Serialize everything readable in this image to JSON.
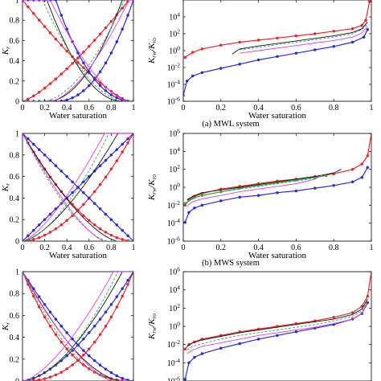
{
  "chart_data": [
    {
      "type": "line",
      "caption": "",
      "xlabel": "Water saturation",
      "ylabel": "K_r",
      "xlim": [
        0,
        1
      ],
      "ylim": [
        0,
        1
      ],
      "yscale": "linear",
      "xticks": [
        "0",
        "0.2",
        "0.4",
        "0.6",
        "0.8",
        "1"
      ],
      "yticks": [
        "0",
        "0.2",
        "0.4",
        "0.6",
        "0.8",
        "1"
      ],
      "series": [
        {
          "color": "#e8262d",
          "marker": true,
          "style": "solid",
          "kind": "krw",
          "a": 0.0,
          "b": 0.96,
          "n": 1.3
        },
        {
          "color": "#e8262d",
          "marker": true,
          "style": "solid",
          "kind": "kro",
          "a": 0.0,
          "b": 0.96,
          "n": 1.3
        },
        {
          "color": "#2b2bd0",
          "marker": true,
          "style": "solid",
          "kind": "krw",
          "a": 0.3,
          "b": 1.0,
          "n": 2.2
        },
        {
          "color": "#2b2bd0",
          "marker": true,
          "style": "solid",
          "kind": "kro",
          "a": 0.3,
          "b": 1.0,
          "n": 2.2
        },
        {
          "color": "#111111",
          "marker": false,
          "style": "solid",
          "kind": "krw",
          "a": 0.22,
          "b": 0.9,
          "n": 2.0
        },
        {
          "color": "#111111",
          "marker": false,
          "style": "solid",
          "kind": "kro",
          "a": 0.22,
          "b": 0.9,
          "n": 2.0
        },
        {
          "color": "#2ba84a",
          "marker": false,
          "style": "dashed",
          "kind": "krw",
          "a": 0.18,
          "b": 0.92,
          "n": 1.8
        },
        {
          "color": "#2ba84a",
          "marker": false,
          "style": "dashed",
          "kind": "kro",
          "a": 0.18,
          "b": 0.92,
          "n": 1.8
        },
        {
          "color": "#e23de0",
          "marker": false,
          "style": "solid",
          "kind": "krw",
          "a": 0.25,
          "b": 0.96,
          "n": 1.6
        },
        {
          "color": "#e23de0",
          "marker": false,
          "style": "solid",
          "kind": "kro",
          "a": 0.25,
          "b": 0.96,
          "n": 1.6
        }
      ]
    },
    {
      "type": "line",
      "caption": "(a) MWL system",
      "xlabel": "Water saturation",
      "ylabel": "K_rw/K_ro",
      "xlim": [
        0,
        1
      ],
      "ylim": [
        -6,
        6
      ],
      "yscale": "log",
      "xticks": [
        "0",
        "0.2",
        "0.4",
        "0.6",
        "0.8",
        "1"
      ],
      "yticks": [
        "10^-6",
        "10^-4",
        "10^-2",
        "10^0",
        "10^2",
        "10^4"
      ],
      "series": [
        {
          "color": "#e8262d",
          "marker": true,
          "style": "solid",
          "x": [
            0.01,
            0.05,
            0.1,
            0.2,
            0.3,
            0.4,
            0.5,
            0.6,
            0.7,
            0.8,
            0.9,
            0.95,
            0.97,
            0.99
          ],
          "y": [
            -0.8,
            -0.2,
            0.2,
            0.65,
            1.0,
            1.25,
            1.5,
            1.75,
            2.0,
            2.3,
            2.6,
            3.0,
            3.6,
            5.8
          ]
        },
        {
          "color": "#2b2bd0",
          "marker": true,
          "style": "solid",
          "x": [
            0.0,
            0.02,
            0.05,
            0.1,
            0.2,
            0.3,
            0.4,
            0.5,
            0.6,
            0.7,
            0.8,
            0.9,
            0.96,
            0.98
          ],
          "y": [
            -5.3,
            -3.6,
            -3.0,
            -2.6,
            -2.1,
            -1.6,
            -1.1,
            -0.7,
            -0.3,
            0.1,
            0.5,
            1.0,
            1.6,
            2.5
          ]
        },
        {
          "color": "#111111",
          "marker": false,
          "style": "solid",
          "x": [
            0.26,
            0.3,
            0.4,
            0.5,
            0.6,
            0.7,
            0.8,
            0.9,
            0.95,
            0.98
          ],
          "y": [
            -0.4,
            0.2,
            0.55,
            0.85,
            1.15,
            1.45,
            1.75,
            2.15,
            2.6,
            3.4
          ]
        },
        {
          "color": "#2ba84a",
          "marker": false,
          "style": "dashed",
          "x": [
            0.3,
            0.4,
            0.5,
            0.6,
            0.7,
            0.8,
            0.9,
            0.95,
            0.98
          ],
          "y": [
            0.1,
            0.4,
            0.7,
            1.0,
            1.3,
            1.6,
            2.0,
            2.5,
            3.2
          ]
        },
        {
          "color": "#e23de0",
          "marker": false,
          "style": "solid",
          "x": [
            0.3,
            0.4,
            0.5,
            0.6,
            0.7,
            0.8,
            0.9,
            0.95,
            0.98
          ],
          "y": [
            -0.3,
            0.0,
            0.3,
            0.6,
            0.9,
            1.2,
            1.6,
            2.1,
            2.9
          ]
        }
      ]
    },
    {
      "type": "line",
      "caption": "",
      "xlabel": "Water saturation",
      "ylabel": "K_r",
      "xlim": [
        0,
        1
      ],
      "ylim": [
        0,
        1
      ],
      "yscale": "linear",
      "xticks": [
        "0",
        "0.2",
        "0.4",
        "0.6",
        "0.8",
        "1"
      ],
      "yticks": [
        "0",
        "0.2",
        "0.4",
        "0.6",
        "0.8",
        "1"
      ],
      "series": [
        {
          "color": "#e8262d",
          "marker": true,
          "style": "solid",
          "kind": "krw",
          "a": 0.0,
          "b": 1.0,
          "n": 1.8
        },
        {
          "color": "#e8262d",
          "marker": true,
          "style": "solid",
          "kind": "kro",
          "a": 0.0,
          "b": 1.0,
          "n": 1.8
        },
        {
          "color": "#2b2bd0",
          "marker": true,
          "style": "solid",
          "kind": "krw",
          "a": 0.0,
          "b": 1.0,
          "n": 1.0
        },
        {
          "color": "#2b2bd0",
          "marker": true,
          "style": "solid",
          "kind": "kro",
          "a": 0.0,
          "b": 1.0,
          "n": 1.0
        },
        {
          "color": "#111111",
          "marker": false,
          "style": "solid",
          "kind": "krw",
          "a": 0.0,
          "b": 0.86,
          "n": 1.5
        },
        {
          "color": "#111111",
          "marker": false,
          "style": "solid",
          "kind": "kro",
          "a": 0.0,
          "b": 0.86,
          "n": 1.5
        },
        {
          "color": "#2ba84a",
          "marker": false,
          "style": "dashed",
          "kind": "krw",
          "a": 0.0,
          "b": 0.78,
          "n": 1.6
        },
        {
          "color": "#2ba84a",
          "marker": false,
          "style": "dashed",
          "kind": "kro",
          "a": 0.0,
          "b": 0.78,
          "n": 1.6
        },
        {
          "color": "#e23de0",
          "marker": false,
          "style": "solid",
          "kind": "krw",
          "a": 0.0,
          "b": 0.74,
          "n": 1.4
        },
        {
          "color": "#e23de0",
          "marker": false,
          "style": "solid",
          "kind": "kro",
          "a": 0.0,
          "b": 0.74,
          "n": 1.4
        }
      ]
    },
    {
      "type": "line",
      "caption": "(b) MWS system",
      "xlabel": "Water saturation",
      "ylabel": "K_rw/K_ro",
      "xlim": [
        0,
        1
      ],
      "ylim": [
        -6,
        6
      ],
      "yscale": "log",
      "xticks": [
        "0",
        "0.2",
        "0.4",
        "0.6",
        "0.8",
        "1"
      ],
      "yticks": [
        "10^-6",
        "10^-4",
        "10^-2",
        "10^0",
        "10^2",
        "10^4",
        "10^6"
      ],
      "series": [
        {
          "color": "#e8262d",
          "marker": true,
          "style": "solid",
          "x": [
            0.01,
            0.03,
            0.06,
            0.1,
            0.2,
            0.3,
            0.4,
            0.5,
            0.6,
            0.7,
            0.8,
            0.9,
            0.95,
            0.98,
            1.0
          ],
          "y": [
            -2.0,
            -1.4,
            -1.0,
            -0.7,
            -0.2,
            0.1,
            0.4,
            0.7,
            0.9,
            1.2,
            1.5,
            2.0,
            2.6,
            3.5,
            6.0
          ]
        },
        {
          "color": "#2ba84a",
          "marker": true,
          "style": "solid",
          "x": [
            0.01,
            0.05,
            0.1,
            0.2,
            0.3,
            0.4,
            0.5,
            0.6,
            0.7,
            0.76
          ],
          "y": [
            -1.8,
            -1.2,
            -0.9,
            -0.5,
            -0.1,
            0.2,
            0.5,
            0.8,
            1.1,
            1.3
          ]
        },
        {
          "color": "#2b2bd0",
          "marker": true,
          "style": "solid",
          "x": [
            0.01,
            0.03,
            0.06,
            0.1,
            0.2,
            0.3,
            0.4,
            0.5,
            0.6,
            0.7,
            0.8,
            0.9,
            0.95,
            0.98
          ],
          "y": [
            -3.9,
            -2.8,
            -2.3,
            -2.0,
            -1.5,
            -1.1,
            -0.9,
            -0.6,
            -0.4,
            -0.1,
            0.2,
            0.6,
            1.1,
            2.2
          ]
        },
        {
          "color": "#111111",
          "marker": false,
          "style": "solid",
          "x": [
            0.02,
            0.05,
            0.1,
            0.2,
            0.3,
            0.4,
            0.5,
            0.6,
            0.7,
            0.8,
            0.84
          ],
          "y": [
            -1.4,
            -1.0,
            -0.6,
            -0.3,
            0.0,
            0.3,
            0.6,
            0.9,
            1.2,
            1.6,
            2.0
          ]
        },
        {
          "color": "#2ba84a",
          "marker": false,
          "style": "dashed",
          "x": [
            0.02,
            0.05,
            0.1,
            0.2,
            0.3,
            0.4,
            0.5,
            0.6,
            0.7,
            0.76
          ],
          "y": [
            -1.7,
            -1.3,
            -0.9,
            -0.5,
            -0.2,
            0.1,
            0.4,
            0.7,
            1.0,
            1.4
          ]
        },
        {
          "color": "#e23de0",
          "marker": false,
          "style": "solid",
          "x": [
            0.02,
            0.05,
            0.1,
            0.2,
            0.3,
            0.4,
            0.5,
            0.6,
            0.7,
            0.74
          ],
          "y": [
            -2.1,
            -1.6,
            -1.3,
            -0.9,
            -0.5,
            -0.2,
            0.1,
            0.4,
            0.9,
            1.4
          ]
        }
      ]
    },
    {
      "type": "line",
      "caption": "",
      "xlabel": "",
      "ylabel": "K_r",
      "xlim": [
        0,
        1
      ],
      "ylim": [
        0,
        1
      ],
      "yscale": "linear",
      "xticks": [],
      "yticks": [
        "0",
        "0.2",
        "0.4",
        "0.6",
        "0.8",
        "1"
      ],
      "series": [
        {
          "color": "#e8262d",
          "marker": true,
          "style": "solid",
          "kind": "krw",
          "a": 0.0,
          "b": 1.0,
          "n": 2.4
        },
        {
          "color": "#e8262d",
          "marker": true,
          "style": "solid",
          "kind": "kro",
          "a": 0.0,
          "b": 1.0,
          "n": 2.4
        },
        {
          "color": "#2b2bd0",
          "marker": true,
          "style": "solid",
          "kind": "krw",
          "a": 0.0,
          "b": 1.0,
          "n": 1.6
        },
        {
          "color": "#2b2bd0",
          "marker": true,
          "style": "solid",
          "kind": "kro",
          "a": 0.0,
          "b": 1.0,
          "n": 1.6
        },
        {
          "color": "#111111",
          "marker": false,
          "style": "solid",
          "kind": "krw",
          "a": 0.0,
          "b": 0.9,
          "n": 1.7
        },
        {
          "color": "#111111",
          "marker": false,
          "style": "solid",
          "kind": "kro",
          "a": 0.0,
          "b": 0.9,
          "n": 1.7
        },
        {
          "color": "#2ba84a",
          "marker": false,
          "style": "dashed",
          "kind": "krw",
          "a": 0.0,
          "b": 0.86,
          "n": 1.8
        },
        {
          "color": "#2ba84a",
          "marker": false,
          "style": "dashed",
          "kind": "kro",
          "a": 0.0,
          "b": 0.86,
          "n": 1.8
        },
        {
          "color": "#e23de0",
          "marker": false,
          "style": "solid",
          "kind": "krw",
          "a": 0.0,
          "b": 0.82,
          "n": 1.5
        },
        {
          "color": "#e23de0",
          "marker": false,
          "style": "solid",
          "kind": "kro",
          "a": 0.0,
          "b": 0.82,
          "n": 1.5
        }
      ]
    },
    {
      "type": "line",
      "caption": "",
      "xlabel": "",
      "ylabel": "K_rw/K_ro",
      "xlim": [
        0,
        1
      ],
      "ylim": [
        -6,
        6
      ],
      "yscale": "log",
      "xticks": [],
      "yticks": [
        "10^-6",
        "10^-4",
        "10^-2",
        "10^0",
        "10^2",
        "10^4",
        "10^6"
      ],
      "series": [
        {
          "color": "#e8262d",
          "marker": true,
          "style": "solid",
          "x": [
            0.01,
            0.03,
            0.06,
            0.1,
            0.2,
            0.3,
            0.4,
            0.5,
            0.6,
            0.7,
            0.8,
            0.9,
            0.95,
            0.98,
            1.0
          ],
          "y": [
            -2.5,
            -2.0,
            -1.7,
            -1.4,
            -1.0,
            -0.6,
            -0.3,
            0.0,
            0.3,
            0.6,
            1.0,
            1.5,
            2.2,
            3.3,
            6.0
          ]
        },
        {
          "color": "#2b2bd0",
          "marker": true,
          "style": "solid",
          "x": [
            0.01,
            0.03,
            0.06,
            0.1,
            0.2,
            0.3,
            0.4,
            0.5,
            0.6,
            0.7,
            0.8,
            0.9,
            0.95,
            0.98
          ],
          "y": [
            -5.8,
            -4.0,
            -3.4,
            -3.0,
            -2.4,
            -1.9,
            -1.4,
            -1.0,
            -0.6,
            -0.2,
            0.2,
            0.8,
            1.4,
            2.6
          ]
        },
        {
          "color": "#111111",
          "marker": false,
          "style": "solid",
          "x": [
            0.02,
            0.05,
            0.1,
            0.2,
            0.3,
            0.4,
            0.5,
            0.6,
            0.7,
            0.8,
            0.9,
            0.95,
            0.98
          ],
          "y": [
            -2.2,
            -1.8,
            -1.5,
            -1.1,
            -0.7,
            -0.4,
            -0.1,
            0.2,
            0.5,
            0.8,
            1.3,
            1.9,
            3.0
          ]
        },
        {
          "color": "#2ba84a",
          "marker": false,
          "style": "dashed",
          "x": [
            0.02,
            0.05,
            0.1,
            0.2,
            0.3,
            0.4,
            0.5,
            0.6,
            0.7,
            0.8,
            0.9,
            0.95,
            0.98
          ],
          "y": [
            -2.6,
            -2.2,
            -1.9,
            -1.4,
            -1.0,
            -0.7,
            -0.4,
            -0.1,
            0.2,
            0.6,
            1.1,
            1.7,
            2.8
          ]
        },
        {
          "color": "#e23de0",
          "marker": false,
          "style": "solid",
          "x": [
            0.02,
            0.05,
            0.1,
            0.2,
            0.3,
            0.4,
            0.5,
            0.6,
            0.7,
            0.8,
            0.9,
            0.95,
            0.98
          ],
          "y": [
            -3.0,
            -2.6,
            -2.2,
            -1.8,
            -1.4,
            -1.0,
            -0.7,
            -0.4,
            -0.1,
            0.3,
            0.8,
            1.4,
            2.5
          ]
        }
      ]
    }
  ]
}
